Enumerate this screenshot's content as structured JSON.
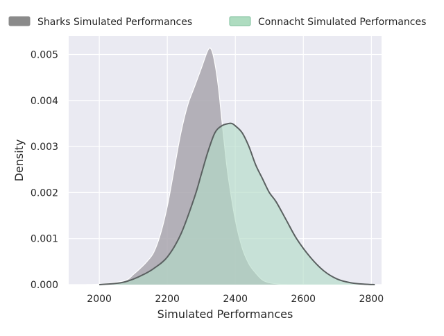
{
  "chart_data": {
    "type": "area",
    "xlabel": "Simulated Performances",
    "ylabel": "Density",
    "xlim": [
      1910,
      2830
    ],
    "ylim": [
      0,
      0.0054
    ],
    "x_ticks": [
      2000,
      2200,
      2400,
      2600,
      2800
    ],
    "x_tick_labels": [
      "2000",
      "2200",
      "2400",
      "2600",
      "2800"
    ],
    "y_ticks": [
      0.0,
      0.001,
      0.002,
      0.003,
      0.004,
      0.005
    ],
    "y_tick_labels": [
      "0.000",
      "0.001",
      "0.002",
      "0.003",
      "0.004",
      "0.005"
    ],
    "grid": true,
    "legend_placement": "top",
    "series": [
      {
        "name": "Sharks Simulated Performances",
        "fill_color": "#a9a6ae",
        "legend_color": "#8a8a8a",
        "line_color": "#ffffff",
        "x": [
          1960,
          2000,
          2040,
          2080,
          2100,
          2120,
          2140,
          2160,
          2180,
          2200,
          2220,
          2240,
          2260,
          2280,
          2300,
          2320,
          2330,
          2340,
          2350,
          2360,
          2370,
          2380,
          2400,
          2420,
          2440,
          2460,
          2480,
          2500,
          2530,
          2560,
          2600
        ],
        "values": [
          0.0,
          1e-05,
          4e-05,
          0.0001,
          0.00022,
          0.00035,
          0.0005,
          0.0007,
          0.0011,
          0.0017,
          0.0025,
          0.0033,
          0.0039,
          0.0043,
          0.0047,
          0.0051,
          0.0051,
          0.0048,
          0.0043,
          0.0036,
          0.0029,
          0.0023,
          0.0014,
          0.0008,
          0.00045,
          0.00025,
          0.0001,
          4e-05,
          1e-05,
          0.0,
          0.0
        ]
      },
      {
        "name": "Connacht Simulated Performances",
        "fill_color": "#b3dbc8",
        "legend_color": "#aedcc0",
        "line_color": "#5a6060",
        "x": [
          2000,
          2040,
          2070,
          2100,
          2130,
          2160,
          2200,
          2240,
          2280,
          2300,
          2320,
          2340,
          2360,
          2380,
          2390,
          2400,
          2420,
          2440,
          2460,
          2480,
          2500,
          2520,
          2550,
          2580,
          2620,
          2660,
          2700,
          2740,
          2780,
          2810
        ],
        "values": [
          0.0,
          2e-05,
          5e-05,
          0.00012,
          0.00022,
          0.00035,
          0.0006,
          0.0011,
          0.0019,
          0.0024,
          0.0029,
          0.0033,
          0.00345,
          0.0035,
          0.0035,
          0.00345,
          0.0033,
          0.003,
          0.0026,
          0.0023,
          0.002,
          0.0018,
          0.0014,
          0.001,
          0.0006,
          0.0003,
          0.00012,
          4e-05,
          1e-05,
          0.0
        ]
      }
    ]
  }
}
